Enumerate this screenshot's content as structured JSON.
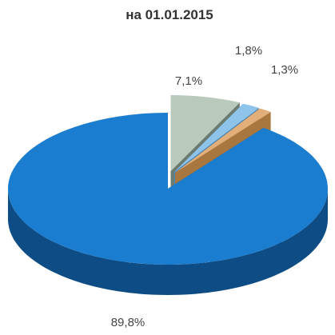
{
  "chart_data": {
    "type": "pie",
    "title": "на 01.01.2015",
    "values": [
      7.1,
      1.8,
      1.3,
      89.8
    ],
    "value_labels": [
      "7,1%",
      "1,8%",
      "1,3%",
      "89,8%"
    ],
    "colors": [
      "#b9cabd",
      "#8ec3ea",
      "#e2ae7a",
      "#1b7dcf"
    ],
    "side_colors": [
      "#6c7b70",
      "#4f86b3",
      "#a8763f",
      "#0d4c84"
    ]
  }
}
